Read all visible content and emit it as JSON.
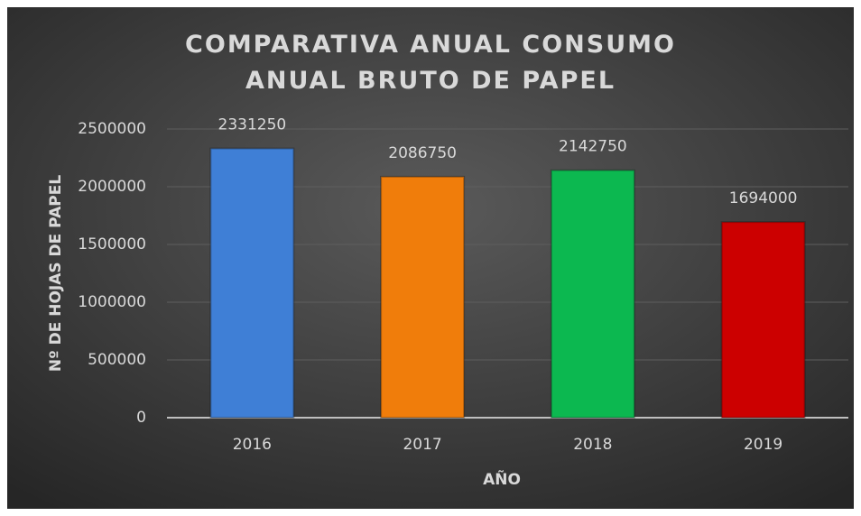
{
  "chart_data": {
    "type": "bar",
    "title": "COMPARATIVA ANUAL CONSUMO ANUAL BRUTO DE PAPEL",
    "x_label": "AÑO",
    "y_label": "Nº DE HOJAS DE PAPEL",
    "categories": [
      "2016",
      "2017",
      "2018",
      "2019"
    ],
    "values": [
      2331250,
      2086750,
      2142750,
      1694000
    ],
    "colors": [
      "#3f7fd6",
      "#f07d0b",
      "#0cb850",
      "#cc0000"
    ],
    "ylim": [
      0,
      2500000
    ],
    "yticks": [
      0,
      500000,
      1000000,
      1500000,
      2000000,
      2500000
    ],
    "grid": true
  }
}
